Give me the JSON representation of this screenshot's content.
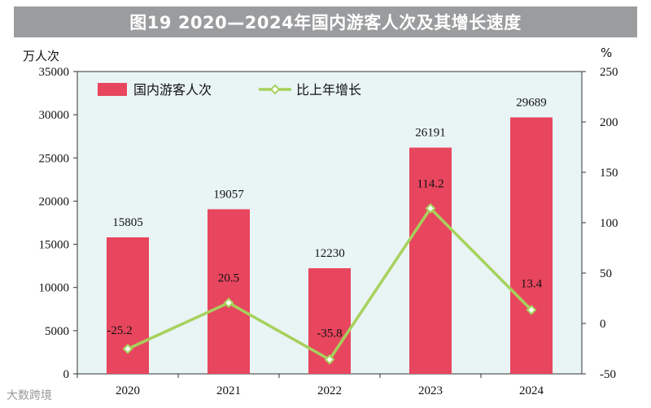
{
  "title": "图19  2020—2024年国内游客人次及其增长速度",
  "watermark": "大数跨境",
  "colors": {
    "bar": "#e8465e",
    "line": "#a6d15c",
    "plot_bg": "#e9f4f5",
    "title_bg": "#9a9c9e"
  },
  "chart_data": {
    "type": "bar",
    "categories": [
      "2020",
      "2021",
      "2022",
      "2023",
      "2024"
    ],
    "left_unit": "万人次",
    "right_unit": "%",
    "left_ylim": [
      0,
      35000
    ],
    "left_ticks": [
      0,
      5000,
      10000,
      15000,
      20000,
      25000,
      30000,
      35000
    ],
    "right_ylim": [
      -50,
      250
    ],
    "right_ticks": [
      -50,
      0,
      50,
      100,
      150,
      200,
      250
    ],
    "legend_position": "top-left",
    "series": [
      {
        "name": "国内游客人次",
        "type": "bar",
        "axis": "left",
        "values": [
          15805,
          19057,
          12230,
          26191,
          29689
        ],
        "labels": [
          "15805",
          "19057",
          "12230",
          "26191",
          "29689"
        ]
      },
      {
        "name": "比上年增长",
        "type": "line",
        "axis": "right",
        "values": [
          -25.2,
          20.5,
          -35.8,
          114.2,
          13.4
        ],
        "labels": [
          "-25.2",
          "20.5",
          "-35.8",
          "114.2",
          "13.4"
        ]
      }
    ]
  }
}
